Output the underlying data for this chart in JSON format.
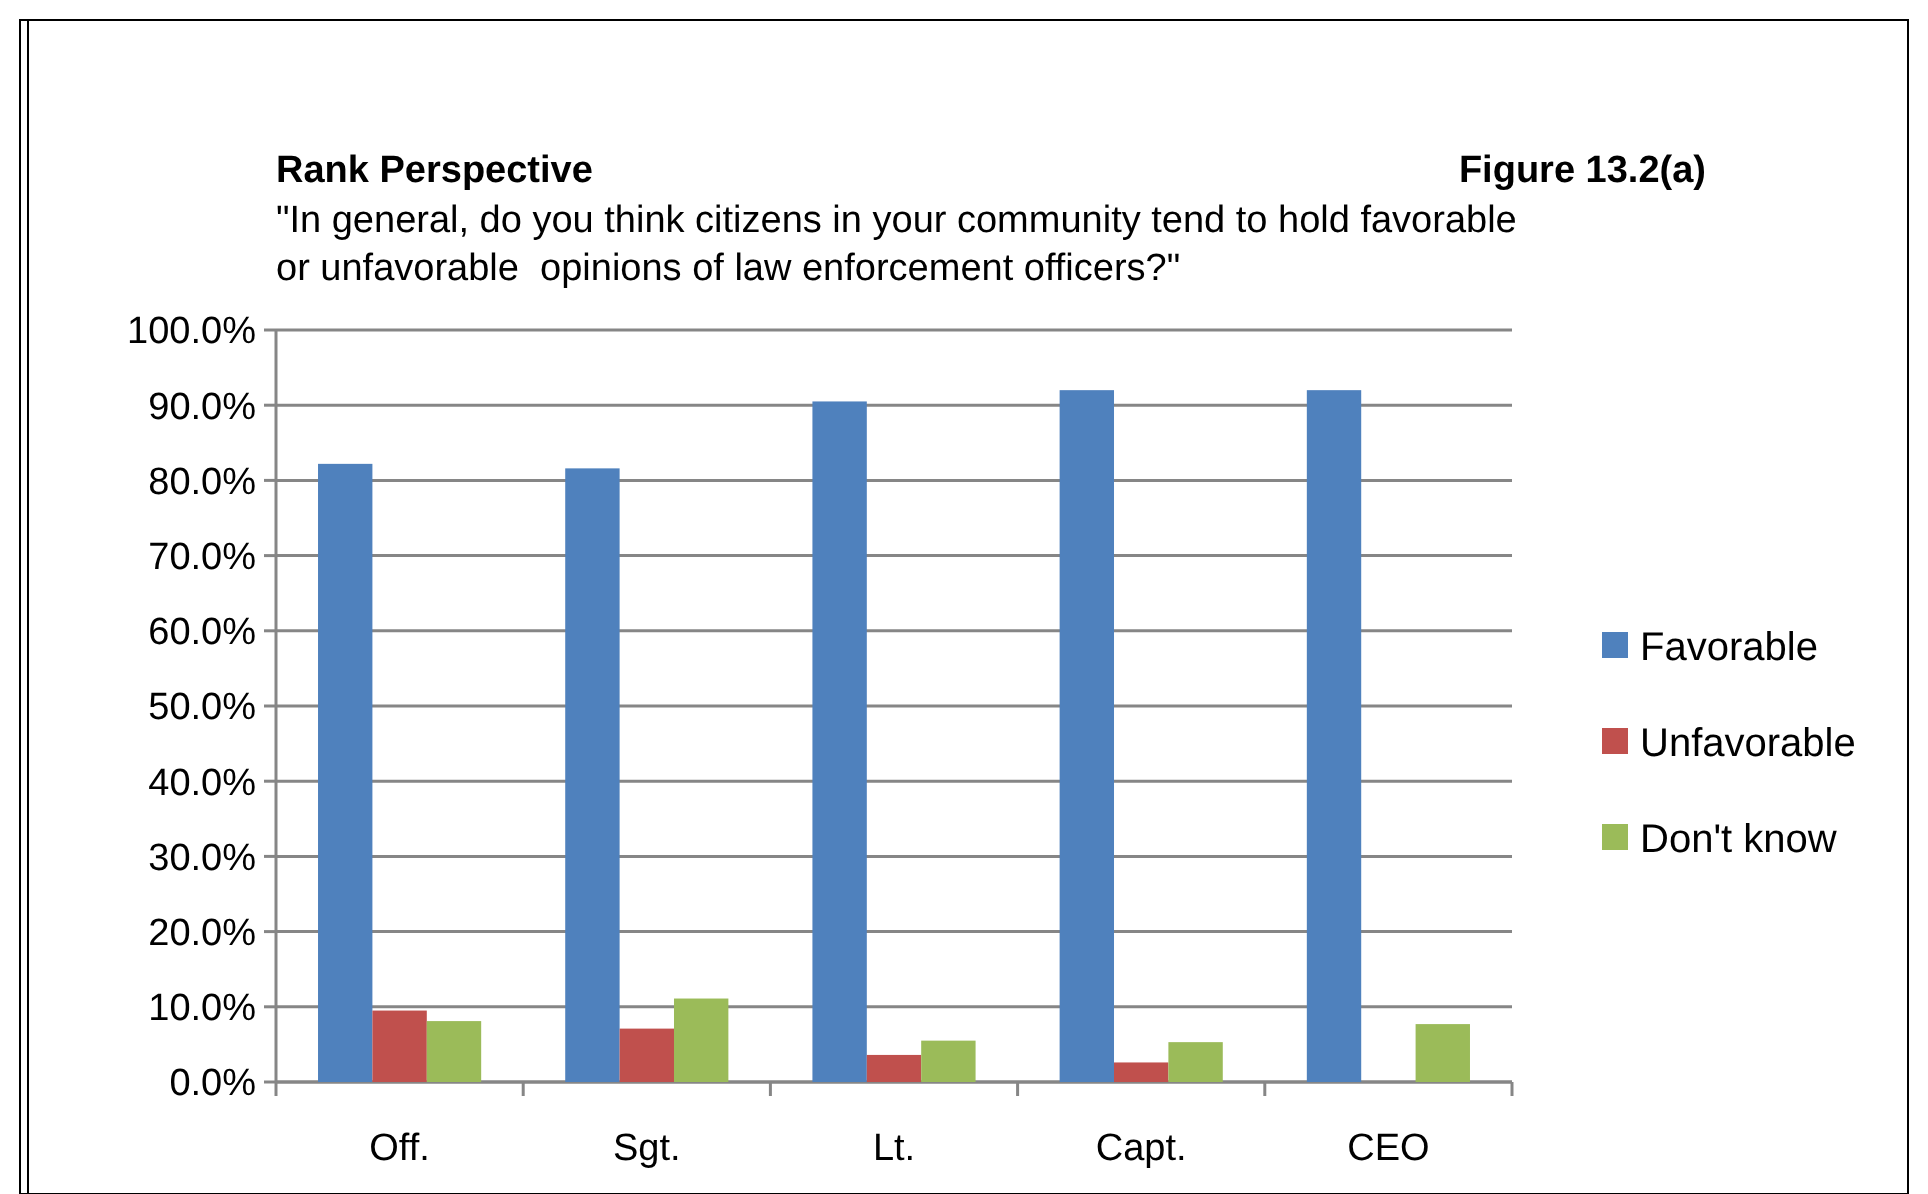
{
  "chart_data": {
    "type": "bar",
    "title": "Rank Perspective",
    "subtitle": "\"In general, do you think citizens in your community tend to hold favorable\nor unfavorable  opinions of law enforcement officers?\"",
    "annotations": [
      "Figure 13.2(a)"
    ],
    "categories": [
      "Off.",
      "Sgt.",
      "Lt.",
      "Capt.",
      "CEO"
    ],
    "series": [
      {
        "name": "Favorable",
        "color": "#4f81bd",
        "values": [
          82.2,
          81.6,
          90.5,
          92.0,
          92.0
        ]
      },
      {
        "name": "Unfavorable",
        "color": "#c0504d",
        "values": [
          9.5,
          7.1,
          3.6,
          2.6,
          0
        ]
      },
      {
        "name": "Don't know",
        "color": "#9bbb59",
        "values": [
          8.1,
          11.1,
          5.5,
          5.3,
          7.7
        ]
      }
    ],
    "ylim": [
      0,
      100
    ],
    "yticks": [
      {
        "value": 0,
        "label": "0.0%"
      },
      {
        "value": 10,
        "label": "10.0%"
      },
      {
        "value": 20,
        "label": "20.0%"
      },
      {
        "value": 30,
        "label": "30.0%"
      },
      {
        "value": 40,
        "label": "40.0%"
      },
      {
        "value": 50,
        "label": "50.0%"
      },
      {
        "value": 60,
        "label": "60.0%"
      },
      {
        "value": 70,
        "label": "70.0%"
      },
      {
        "value": 80,
        "label": "80.0%"
      },
      {
        "value": 90,
        "label": "90.0%"
      },
      {
        "value": 100,
        "label": "100.0%"
      }
    ],
    "grid": "y",
    "legend": "right"
  }
}
